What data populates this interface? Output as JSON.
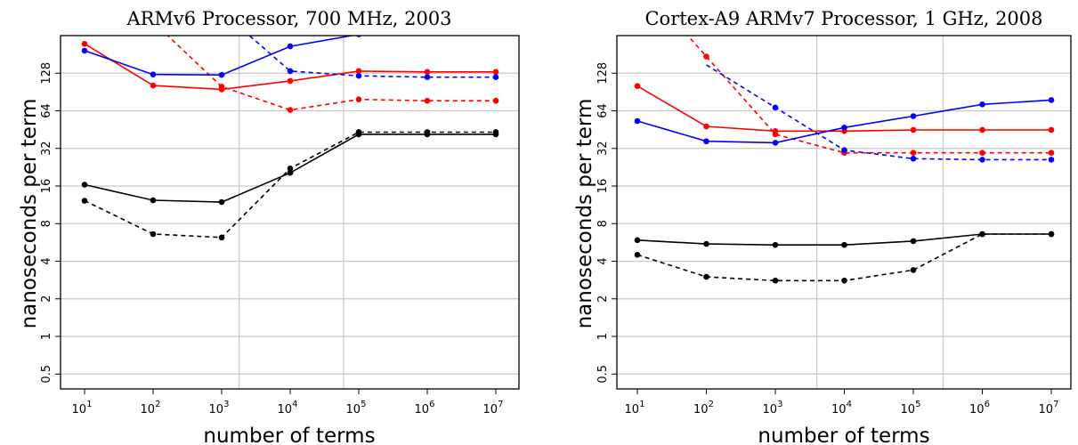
{
  "chart_data": [
    {
      "type": "line",
      "title": "ARMv6 Processor, 700 MHz, 2003",
      "xlabel": "number of terms",
      "ylabel": "nanoseconds per term",
      "x_scale": "log10",
      "y_scale": "log2",
      "x_ticks": [
        {
          "base": "10",
          "exp": "1"
        },
        {
          "base": "10",
          "exp": "2"
        },
        {
          "base": "10",
          "exp": "3"
        },
        {
          "base": "10",
          "exp": "4"
        },
        {
          "base": "10",
          "exp": "5"
        },
        {
          "base": "10",
          "exp": "6"
        },
        {
          "base": "10",
          "exp": "7"
        }
      ],
      "y_ticks": [
        "0.5",
        "1",
        "2",
        "4",
        "8",
        "16",
        "32",
        "64",
        "128"
      ],
      "x": [
        10,
        100,
        1000,
        10000,
        100000,
        1000000,
        10000000
      ],
      "ylim": [
        0.38,
        256
      ],
      "vlines": [
        1800,
        60000
      ],
      "series": [
        {
          "color": "#ff0000",
          "dash": false,
          "values": [
            220,
            102,
            95,
            111,
            133,
            131,
            131
          ]
        },
        {
          "color": "#ff0000",
          "dash": true,
          "values": [
            null,
            330,
            100,
            65,
            79,
            77,
            77
          ]
        },
        {
          "color": "#0000ff",
          "dash": false,
          "values": [
            194,
            125,
            124,
            210,
            262,
            null,
            null
          ]
        },
        {
          "color": "#0000ff",
          "dash": true,
          "values": [
            null,
            null,
            400,
            133,
            122,
            119,
            119
          ]
        },
        {
          "color": "#000000",
          "dash": false,
          "values": [
            16.4,
            12.3,
            11.9,
            20.4,
            41.5,
            41.5,
            41.5
          ]
        },
        {
          "color": "#000000",
          "dash": true,
          "values": [
            12.2,
            6.6,
            6.2,
            22.1,
            43.2,
            43.2,
            43.2
          ]
        }
      ]
    },
    {
      "type": "line",
      "title": "Cortex-A9 ARMv7 Processor, 1 GHz, 2008",
      "xlabel": "number of terms",
      "ylabel": "nanoseconds per term",
      "x_scale": "log10",
      "y_scale": "log2",
      "x_ticks": [
        {
          "base": "10",
          "exp": "1"
        },
        {
          "base": "10",
          "exp": "2"
        },
        {
          "base": "10",
          "exp": "3"
        },
        {
          "base": "10",
          "exp": "4"
        },
        {
          "base": "10",
          "exp": "5"
        },
        {
          "base": "10",
          "exp": "6"
        },
        {
          "base": "10",
          "exp": "7"
        }
      ],
      "y_ticks": [
        "0.5",
        "1",
        "2",
        "4",
        "8",
        "16",
        "32",
        "64",
        "128"
      ],
      "x": [
        10,
        100,
        1000,
        10000,
        100000,
        1000000,
        10000000
      ],
      "ylim": [
        0.38,
        256
      ],
      "vlines": [
        4000,
        270000
      ],
      "series": [
        {
          "color": "#ff0000",
          "dash": false,
          "values": [
            101,
            48,
            44,
            44,
            45,
            45,
            45
          ]
        },
        {
          "color": "#ff0000",
          "dash": true,
          "values": [
            null,
            174,
            41.5,
            29.5,
            29.5,
            29.5,
            29.5
          ]
        },
        {
          "color": "#0000ff",
          "dash": false,
          "values": [
            53,
            36.5,
            35.5,
            47,
            58,
            72,
            78
          ]
        },
        {
          "color": "#0000ff",
          "dash": true,
          "values": [
            null,
            null,
            68,
            31,
            26.5,
            26,
            26
          ]
        },
        {
          "color": "#000000",
          "dash": false,
          "values": [
            5.9,
            5.5,
            5.4,
            5.4,
            5.8,
            6.6,
            6.6
          ]
        },
        {
          "color": "#000000",
          "dash": true,
          "values": [
            4.5,
            3.0,
            2.8,
            2.8,
            3.4,
            6.6,
            6.6
          ]
        }
      ]
    }
  ]
}
